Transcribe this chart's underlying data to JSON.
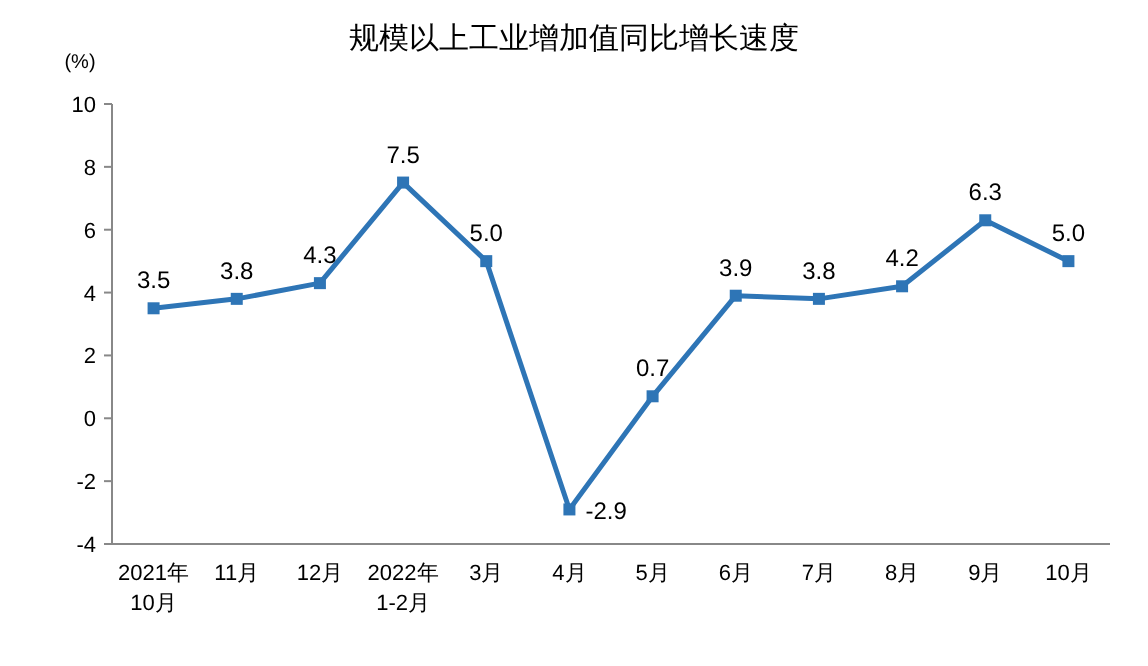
{
  "chart_data": {
    "type": "line",
    "title": "规模以上工业增加值同比增长速度",
    "ylabel": "(%)",
    "categories": [
      "2021年\n10月",
      "11月",
      "12月",
      "2022年\n1-2月",
      "3月",
      "4月",
      "5月",
      "6月",
      "7月",
      "8月",
      "9月",
      "10月"
    ],
    "series": [
      {
        "color": "#2e75b6",
        "values": [
          3.5,
          3.8,
          4.3,
          7.5,
          5.0,
          -2.9,
          0.7,
          3.9,
          3.8,
          4.2,
          6.3,
          5.0
        ]
      }
    ],
    "ylim": [
      -4,
      10
    ],
    "yticks": [
      -4,
      -2,
      0,
      2,
      4,
      6,
      8,
      10
    ],
    "marker": "square",
    "value_labels": [
      "3.5",
      "3.8",
      "4.3",
      "7.5",
      "5.0",
      "-2.9",
      "0.7",
      "3.9",
      "3.8",
      "4.2",
      "6.3",
      "5.0"
    ]
  }
}
